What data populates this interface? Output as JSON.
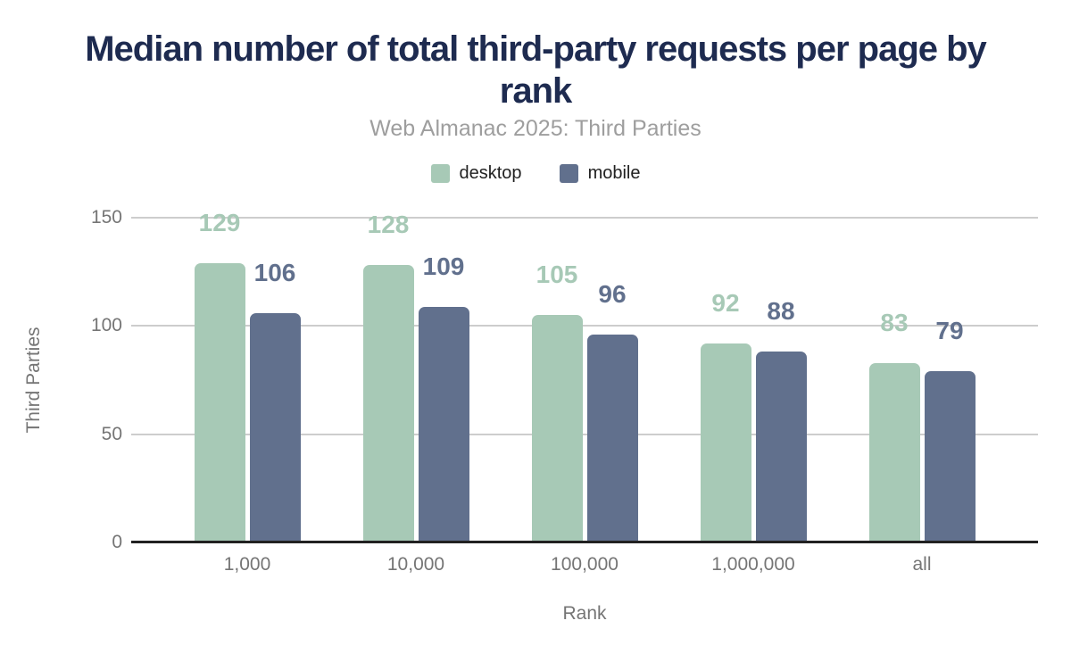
{
  "header": {
    "title": "Median number of total third-party requests per page by rank",
    "subtitle": "Web Almanac 2025: Third Parties"
  },
  "colors": {
    "title": "#1e2b50",
    "subtitle": "#9e9e9e",
    "axis_labels": "#757575",
    "gridline": "#cdcdcd",
    "axis_line": "#212121",
    "desktop": "#a7c9b6",
    "mobile": "#61708d"
  },
  "chart_data": {
    "type": "bar",
    "title": "Median number of total third-party requests per page by rank",
    "subtitle": "Web Almanac 2025: Third Parties",
    "categories": [
      "1,000",
      "10,000",
      "100,000",
      "1,000,000",
      "all"
    ],
    "series": [
      {
        "name": "desktop",
        "color": "#a7c9b6",
        "values": [
          129,
          128,
          105,
          92,
          83
        ]
      },
      {
        "name": "mobile",
        "color": "#61708d",
        "values": [
          106,
          109,
          96,
          88,
          79
        ]
      }
    ],
    "xlabel": "Rank",
    "ylabel": "Third Parties",
    "ylim": [
      0,
      150
    ],
    "y_ticks": [
      0,
      50,
      100,
      150
    ],
    "grid": true,
    "legend_position": "top",
    "data_labels": "values shown above each bar in series color"
  }
}
